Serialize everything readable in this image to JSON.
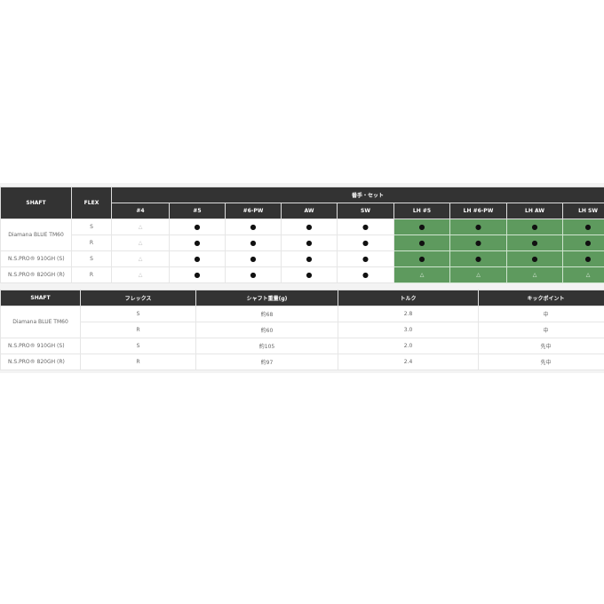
{
  "table1": {
    "headers": {
      "shaft": "SHAFT",
      "flex": "FLEX",
      "group": "番手・セット"
    },
    "columns": [
      "#4",
      "#5",
      "#6-PW",
      "AW",
      "SW",
      "LH #5",
      "LH #6-PW",
      "LH AW",
      "LH SW"
    ],
    "rows": [
      {
        "shaft": "Diamana BLUE TM60",
        "flex": "S",
        "cells": [
          "△",
          "●",
          "●",
          "●",
          "●",
          "●",
          "●",
          "●",
          "●"
        ]
      },
      {
        "shaft": "",
        "flex": "R",
        "cells": [
          "△",
          "●",
          "●",
          "●",
          "●",
          "●",
          "●",
          "●",
          "●"
        ]
      },
      {
        "shaft": "N.S.PRO® 910GH (S)",
        "flex": "S",
        "cells": [
          "△",
          "●",
          "●",
          "●",
          "●",
          "●",
          "●",
          "●",
          "●"
        ]
      },
      {
        "shaft": "N.S.PRO® 820GH (R)",
        "flex": "R",
        "cells": [
          "△",
          "●",
          "●",
          "●",
          "●",
          "△",
          "△",
          "△",
          "△"
        ]
      }
    ],
    "highlight_color": "#5e9a5e"
  },
  "table2": {
    "headers": [
      "SHAFT",
      "フレックス",
      "シャフト重量(g)",
      "トルク",
      "キックポイント"
    ],
    "rows": [
      [
        "Diamana BLUE TM60",
        "S",
        "約68",
        "2.8",
        "中"
      ],
      [
        "",
        "R",
        "約60",
        "3.0",
        "中"
      ],
      [
        "N.S.PRO® 910GH (S)",
        "S",
        "約105",
        "2.0",
        "先中"
      ],
      [
        "N.S.PRO® 820GH (R)",
        "R",
        "約97",
        "2.4",
        "先中"
      ]
    ]
  }
}
